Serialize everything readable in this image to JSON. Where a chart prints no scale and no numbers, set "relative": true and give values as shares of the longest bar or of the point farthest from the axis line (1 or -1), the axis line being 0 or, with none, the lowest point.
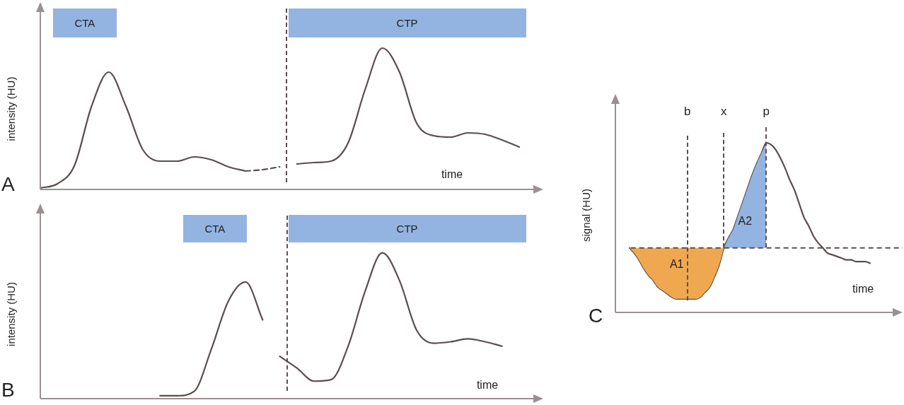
{
  "chart_data": [
    {
      "type": "line",
      "title": "A",
      "ylabel": "intensity (HU)",
      "xlabel": "time",
      "relative": true,
      "legend": false,
      "marker": "none",
      "annotations": [
        "CTA",
        "CTP"
      ],
      "categories": [
        null,
        null,
        null,
        null,
        null,
        null,
        null,
        null,
        null,
        null,
        null,
        null,
        null,
        null,
        null,
        null,
        null,
        null,
        null,
        null,
        null,
        null,
        null,
        null,
        null,
        null,
        null,
        null,
        null
      ],
      "series": [
        {
          "color": "#5b4d4d",
          "values": [
            0.01,
            0.04,
            0.17,
            0.59,
            0.83,
            0.59,
            0.28,
            0.2,
            0.2,
            0.23,
            0.21,
            0.16,
            0.13,
            null,
            null,
            null,
            null,
            null,
            null,
            null,
            null,
            null,
            null,
            null,
            null,
            null,
            null,
            null,
            null
          ]
        },
        {
          "color": "#5b4d4d",
          "line_style": "dashed",
          "values": [
            null,
            null,
            null,
            null,
            null,
            null,
            null,
            null,
            null,
            null,
            null,
            null,
            0.13,
            0.14,
            0.16,
            null,
            null,
            null,
            null,
            null,
            null,
            null,
            null,
            null,
            null,
            null,
            null,
            null,
            null
          ]
        },
        {
          "color": "#5b4d4d",
          "values": [
            null,
            null,
            null,
            null,
            null,
            null,
            null,
            null,
            null,
            null,
            null,
            null,
            null,
            null,
            null,
            0.18,
            0.19,
            0.2,
            0.33,
            0.71,
            1,
            0.83,
            0.47,
            0.38,
            0.37,
            0.4,
            0.39,
            0.35,
            0.3
          ]
        }
      ]
    },
    {
      "type": "line",
      "title": "B",
      "ylabel": "intensity (HU)",
      "xlabel": "time",
      "relative": true,
      "legend": false,
      "marker": "none",
      "annotations": [
        "CTA",
        "CTP"
      ],
      "categories": [
        null,
        null,
        null,
        null,
        null,
        null,
        null,
        null,
        null,
        null,
        null,
        null,
        null,
        null,
        null,
        null,
        null,
        null,
        null,
        null,
        null,
        null,
        null,
        null,
        null,
        null,
        null,
        null,
        null
      ],
      "series": [
        {
          "color": "#5b4d4d",
          "values": [
            null,
            null,
            null,
            null,
            null,
            null,
            null,
            0.02,
            0.02,
            0.05,
            0.34,
            0.67,
            0.8,
            0.54,
            null,
            null,
            null,
            null,
            null,
            null,
            null,
            null,
            null,
            null,
            null,
            null,
            null,
            null,
            null
          ]
        },
        {
          "color": "#5b4d4d",
          "values": [
            null,
            null,
            null,
            null,
            null,
            null,
            null,
            null,
            null,
            null,
            null,
            null,
            null,
            null,
            0.29,
            0.21,
            0.12,
            0.13,
            0.36,
            0.74,
            1,
            0.81,
            0.47,
            0.38,
            0.39,
            0.41,
            0.39,
            0.36,
            null
          ]
        }
      ]
    },
    {
      "type": "line",
      "title": "C",
      "ylabel": "signal (HU)",
      "xlabel": "time",
      "relative": true,
      "legend": false,
      "marker": "none",
      "annotations": [
        "b",
        "x",
        "p"
      ],
      "ref_lines": [
        {
          "axis": "y",
          "value": 0.38,
          "line_style": "dashed"
        }
      ],
      "categories": [
        null,
        null,
        null,
        null,
        null,
        null,
        null,
        null,
        null,
        null,
        null,
        null,
        null,
        null,
        null,
        null,
        null,
        null,
        null,
        null,
        null,
        null,
        null,
        null,
        null,
        null,
        null,
        null,
        null,
        null,
        null,
        null,
        null,
        null,
        null,
        null,
        null,
        null,
        null,
        null,
        null,
        null,
        null,
        null,
        null,
        null,
        null,
        null,
        null,
        null,
        null,
        null,
        null,
        null,
        null,
        null,
        null,
        null,
        null,
        null,
        null
      ],
      "series": [
        {
          "name": "A1",
          "type": "area",
          "color": "#f0a850",
          "values": [
            null,
            null,
            null,
            0.38,
            0.35,
            0.31,
            0.26,
            0.22,
            0.19,
            0.15,
            0.13,
            0.11,
            0.09,
            0.08,
            0.08,
            0.08,
            0.08,
            0.08,
            0.09,
            0.12,
            0.15,
            0.21,
            0.28,
            0.38,
            null,
            null,
            null,
            null,
            null,
            null,
            null,
            null,
            null,
            null,
            null,
            null,
            null,
            null,
            null,
            null,
            null,
            null,
            null,
            null,
            null,
            null,
            null,
            null,
            null,
            null,
            null,
            null,
            null,
            null,
            null,
            null,
            null,
            null,
            null,
            null,
            null
          ]
        },
        {
          "name": "A2",
          "type": "area",
          "color": "#93b4e0",
          "values": [
            null,
            null,
            null,
            null,
            null,
            null,
            null,
            null,
            null,
            null,
            null,
            null,
            null,
            null,
            null,
            null,
            null,
            null,
            null,
            null,
            null,
            null,
            null,
            0.38,
            0.44,
            0.49,
            0.57,
            0.65,
            0.73,
            0.81,
            0.88,
            0.94,
            1,
            null,
            null,
            null,
            null,
            null,
            null,
            null,
            null,
            null,
            null,
            null,
            null,
            null,
            null,
            null,
            null,
            null,
            null,
            null,
            null,
            null,
            null,
            null,
            null,
            null,
            null,
            null,
            null
          ]
        },
        {
          "color": "#5b4d4d",
          "values": [
            null,
            null,
            null,
            0.38,
            0.35,
            0.31,
            0.26,
            0.22,
            0.19,
            0.15,
            0.13,
            0.11,
            0.09,
            0.08,
            0.08,
            0.08,
            0.08,
            0.08,
            0.09,
            0.12,
            0.15,
            0.21,
            0.28,
            0.38,
            0.44,
            0.49,
            0.57,
            0.65,
            0.73,
            0.81,
            0.88,
            0.94,
            1,
            0.99,
            0.96,
            0.91,
            0.85,
            0.78,
            0.72,
            0.64,
            0.56,
            0.51,
            0.45,
            0.41,
            0.38,
            0.35,
            0.34,
            0.33,
            0.32,
            0.31,
            0.31,
            0.3,
            0.3,
            0.3,
            0.29,
            null,
            null,
            null,
            null,
            null,
            null
          ]
        }
      ]
    }
  ]
}
